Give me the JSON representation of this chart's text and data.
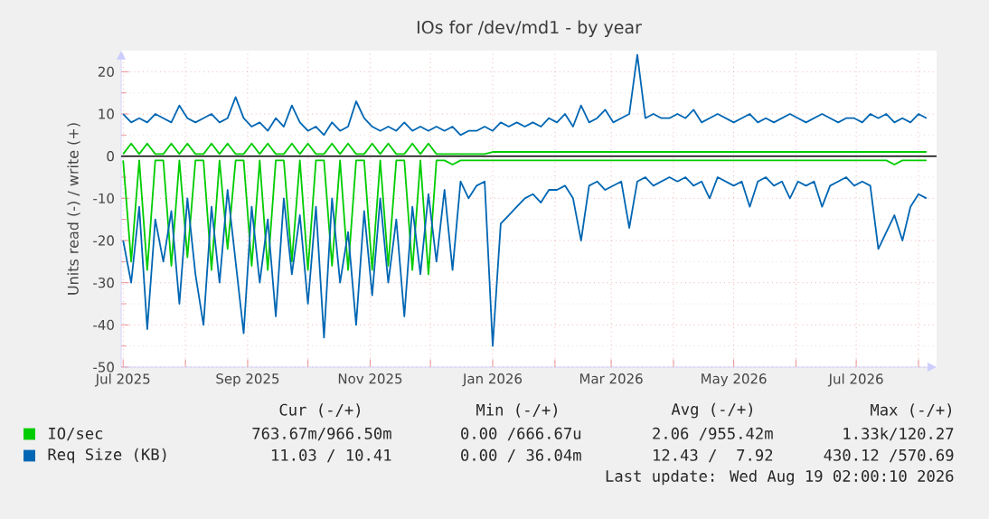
{
  "chart_data": {
    "type": "line",
    "title": "IOs for /dev/md1 - by year",
    "ylabel": "Units read (-) / write (+)",
    "x": [
      "2025-07-01",
      "2025-07-05",
      "2025-07-09",
      "2025-07-13",
      "2025-07-17",
      "2025-07-21",
      "2025-07-25",
      "2025-07-29",
      "2025-08-02",
      "2025-08-06",
      "2025-08-10",
      "2025-08-14",
      "2025-08-18",
      "2025-08-22",
      "2025-08-26",
      "2025-08-30",
      "2025-09-03",
      "2025-09-07",
      "2025-09-11",
      "2025-09-15",
      "2025-09-19",
      "2025-09-23",
      "2025-09-27",
      "2025-10-01",
      "2025-10-05",
      "2025-10-09",
      "2025-10-13",
      "2025-10-17",
      "2025-10-21",
      "2025-10-25",
      "2025-10-29",
      "2025-11-02",
      "2025-11-06",
      "2025-11-10",
      "2025-11-14",
      "2025-11-18",
      "2025-11-22",
      "2025-11-26",
      "2025-11-30",
      "2025-12-04",
      "2025-12-08",
      "2025-12-12",
      "2025-12-16",
      "2025-12-20",
      "2025-12-24",
      "2025-12-28",
      "2026-01-01",
      "2026-01-05",
      "2026-01-09",
      "2026-01-13",
      "2026-01-17",
      "2026-01-21",
      "2026-01-25",
      "2026-01-29",
      "2026-02-02",
      "2026-02-06",
      "2026-02-10",
      "2026-02-14",
      "2026-02-18",
      "2026-02-22",
      "2026-02-26",
      "2026-03-02",
      "2026-03-06",
      "2026-03-10",
      "2026-03-14",
      "2026-03-18",
      "2026-03-22",
      "2026-03-26",
      "2026-03-30",
      "2026-04-03",
      "2026-04-07",
      "2026-04-11",
      "2026-04-15",
      "2026-04-19",
      "2026-04-23",
      "2026-04-27",
      "2026-05-01",
      "2026-05-05",
      "2026-05-09",
      "2026-05-13",
      "2026-05-17",
      "2026-05-21",
      "2026-05-25",
      "2026-05-29",
      "2026-06-02",
      "2026-06-06",
      "2026-06-10",
      "2026-06-14",
      "2026-06-18",
      "2026-06-22",
      "2026-06-26",
      "2026-06-30",
      "2026-07-04",
      "2026-07-08",
      "2026-07-12",
      "2026-07-16",
      "2026-07-20",
      "2026-07-24",
      "2026-07-28",
      "2026-08-01",
      "2026-08-05"
    ],
    "series": [
      {
        "color": "#00cc00",
        "values": [
          -1,
          -25,
          -1,
          -27,
          -1,
          -1,
          -26,
          -1,
          -24,
          -1,
          -1,
          -27,
          -1,
          -22,
          -1,
          -1,
          -26,
          -1,
          -27,
          -1,
          -1,
          -25,
          -1,
          -27,
          -1,
          -1,
          -26,
          -1,
          -27,
          -1,
          -1,
          -27,
          -1,
          -26,
          -1,
          -1,
          -27,
          -1,
          -28,
          -1,
          -1,
          -2,
          -1,
          -1,
          -1,
          -1,
          -1,
          -1,
          -1,
          -1,
          -1,
          -1,
          -1,
          -1,
          -1,
          -1,
          -1,
          -1,
          -1,
          -1,
          -1,
          -1,
          -1,
          -1,
          -1,
          -1,
          -1,
          -1,
          -1,
          -1,
          -1,
          -1,
          -1,
          -1,
          -1,
          -1,
          -1,
          -1,
          -1,
          -1,
          -1,
          -1,
          -1,
          -1,
          -1,
          -1,
          -1,
          -1,
          -1,
          -1,
          -1,
          -1,
          -1,
          -1,
          -1,
          -1,
          -2,
          -1,
          -1,
          -1,
          -1
        ]
      },
      {
        "name": "IO/sec",
        "color": "#00cc00",
        "values": [
          0.5,
          3,
          0.5,
          3,
          0.5,
          0.5,
          3,
          0.5,
          3,
          0.5,
          0.5,
          3,
          0.5,
          3,
          0.5,
          0.5,
          3,
          0.5,
          3,
          0.5,
          0.5,
          3,
          0.5,
          3,
          0.5,
          0.5,
          3,
          0.5,
          3,
          0.5,
          0.5,
          3,
          0.5,
          3,
          0.5,
          0.5,
          3,
          0.5,
          3,
          0.5,
          0.5,
          0.5,
          0.5,
          0.5,
          0.5,
          0.5,
          1,
          1,
          1,
          1,
          1,
          1,
          1,
          1,
          1,
          1,
          1,
          1,
          1,
          1,
          1,
          1,
          1,
          1,
          1,
          1,
          1,
          1,
          1,
          1,
          1,
          1,
          1,
          1,
          1,
          1,
          1,
          1,
          1,
          1,
          1,
          1,
          1,
          1,
          1,
          1,
          1,
          1,
          1,
          1,
          1,
          1,
          1,
          1,
          1,
          1,
          1,
          1,
          1,
          1,
          1
        ]
      },
      {
        "color": "#0066b3",
        "values": [
          -20,
          -30,
          -12,
          -41,
          -15,
          -25,
          -13,
          -35,
          -10,
          -28,
          -40,
          -12,
          -30,
          -8,
          -25,
          -42,
          -12,
          -30,
          -15,
          -38,
          -10,
          -28,
          -14,
          -35,
          -12,
          -43,
          -10,
          -30,
          -18,
          -40,
          -13,
          -33,
          -10,
          -30,
          -15,
          -38,
          -12,
          -28,
          -9,
          -25,
          -8,
          -27,
          -6,
          -10,
          -7,
          -6,
          -45,
          -16,
          -14,
          -12,
          -10,
          -9,
          -11,
          -8,
          -8,
          -7,
          -10,
          -20,
          -7,
          -6,
          -8,
          -7,
          -6,
          -17,
          -6,
          -5,
          -7,
          -6,
          -5,
          -6,
          -5,
          -7,
          -6,
          -10,
          -5,
          -6,
          -7,
          -6,
          -12,
          -6,
          -5,
          -7,
          -6,
          -10,
          -6,
          -7,
          -6,
          -12,
          -7,
          -6,
          -5,
          -7,
          -6,
          -7,
          -22,
          -18,
          -14,
          -20,
          -12,
          -9,
          -10
        ]
      },
      {
        "name": "Req Size (KB)",
        "color": "#0066b3",
        "values": [
          10,
          8,
          9,
          8,
          10,
          9,
          8,
          12,
          9,
          8,
          9,
          10,
          8,
          9,
          14,
          9,
          7,
          8,
          6,
          9,
          7,
          12,
          8,
          6,
          7,
          5,
          8,
          6,
          7,
          13,
          9,
          7,
          6,
          7,
          6,
          8,
          6,
          7,
          6,
          7,
          6,
          7,
          5,
          6,
          6,
          7,
          6,
          8,
          7,
          8,
          7,
          8,
          7,
          9,
          8,
          10,
          7,
          12,
          8,
          9,
          11,
          8,
          9,
          10,
          24,
          9,
          10,
          9,
          9,
          10,
          9,
          11,
          8,
          9,
          10,
          9,
          8,
          9,
          10,
          8,
          9,
          8,
          9,
          10,
          9,
          8,
          9,
          10,
          9,
          8,
          9,
          9,
          8,
          10,
          9,
          10,
          8,
          9,
          8,
          10,
          9
        ]
      }
    ],
    "xlim": [
      "2025-06-30",
      "2026-08-10"
    ],
    "xticks": [
      {
        "value": "2025-07-01",
        "label": "Jul 2025"
      },
      {
        "value": "2025-08-01",
        "label": null
      },
      {
        "value": "2025-09-01",
        "label": "Sep 2025"
      },
      {
        "value": "2025-10-01",
        "label": null
      },
      {
        "value": "2025-11-01",
        "label": "Nov 2025"
      },
      {
        "value": "2025-12-01",
        "label": null
      },
      {
        "value": "2026-01-01",
        "label": "Jan 2026"
      },
      {
        "value": "2026-02-01",
        "label": null
      },
      {
        "value": "2026-03-01",
        "label": "Mar 2026"
      },
      {
        "value": "2026-04-01",
        "label": null
      },
      {
        "value": "2026-05-01",
        "label": "May 2026"
      },
      {
        "value": "2026-06-01",
        "label": null
      },
      {
        "value": "2026-07-01",
        "label": "Jul 2026"
      },
      {
        "value": "2026-08-01",
        "label": null
      }
    ],
    "ylim": [
      -50,
      25
    ],
    "yticks": [
      -50,
      -40,
      -30,
      -20,
      -10,
      0,
      10,
      20
    ],
    "grid": true,
    "legend": "bottom",
    "ref_lines": [
      {
        "axis": "y",
        "value": 0,
        "color": "#000000"
      }
    ],
    "annotations": [
      "Cur (-/+)",
      "Min (-/+)",
      "Avg (-/+)",
      "Max (-/+)",
      "763.67m/966.50m",
      "0.00 /666.67u",
      "2.06 /955.42m",
      "1.33k/120.27",
      "11.03 / 10.41",
      "0.00 / 36.04m",
      "12.43 /  7.92",
      "430.12 /570.69",
      "Last update: Wed Aug 19 02:00:10 2026"
    ]
  }
}
